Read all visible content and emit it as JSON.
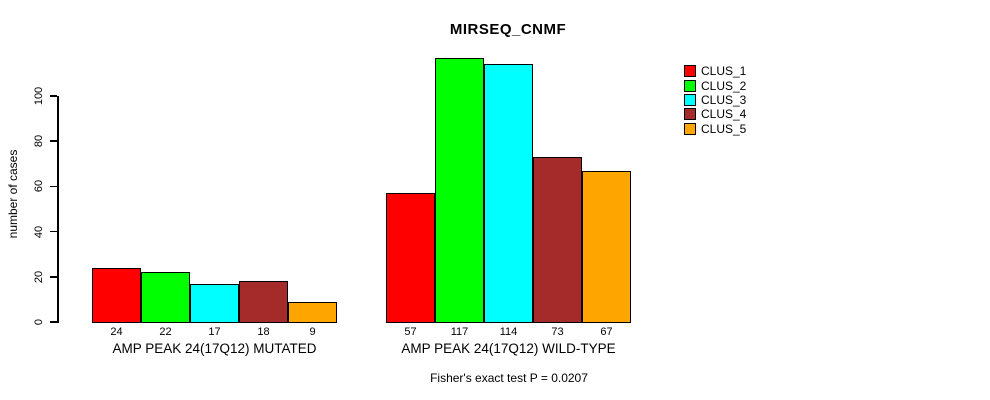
{
  "title": "MIRSEQ_CNMF",
  "ylabel": "number of cases",
  "caption": "Fisher's exact test P = 0.0207",
  "legend": {
    "entries": [
      {
        "label": "CLUS_1",
        "color": "#FF0000"
      },
      {
        "label": "CLUS_2",
        "color": "#00FF00"
      },
      {
        "label": "CLUS_3",
        "color": "#00FFFF"
      },
      {
        "label": "CLUS_4",
        "color": "#A52A2A"
      },
      {
        "label": "CLUS_5",
        "color": "#FFA500"
      }
    ]
  },
  "chart_data": {
    "type": "bar",
    "title": "MIRSEQ_CNMF",
    "xlabel": "",
    "ylabel": "number of cases",
    "yticks": [
      0,
      20,
      40,
      60,
      80,
      100
    ],
    "ylim": [
      0,
      117
    ],
    "grid": false,
    "legend_position": "right-outside",
    "series_names": [
      "CLUS_1",
      "CLUS_2",
      "CLUS_3",
      "CLUS_4",
      "CLUS_5"
    ],
    "series_colors": [
      "#FF0000",
      "#00FF00",
      "#00FFFF",
      "#A52A2A",
      "#FFA500"
    ],
    "groups": [
      {
        "label": "AMP PEAK 24(17Q12) MUTATED",
        "values": [
          24,
          22,
          17,
          18,
          9
        ]
      },
      {
        "label": "AMP PEAK 24(17Q12) WILD-TYPE",
        "values": [
          57,
          117,
          114,
          73,
          67
        ]
      }
    ],
    "bar_value_labels": true,
    "annotation": "Fisher's exact test P = 0.0207"
  }
}
